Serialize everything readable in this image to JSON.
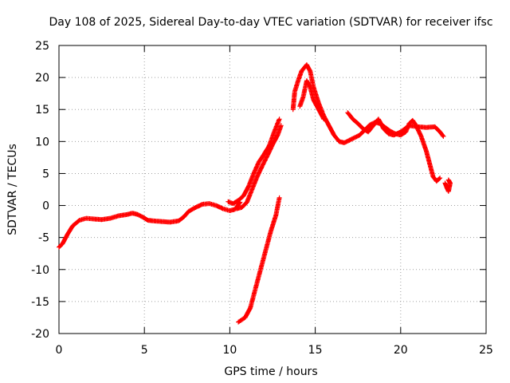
{
  "chart_data": {
    "type": "scatter",
    "title": "Day 108 of 2025, Sidereal Day-to-day VTEC variation (SDTVAR) for receiver ifsc",
    "xlabel": "GPS time / hours",
    "ylabel": "SDTVAR / TECUs",
    "xlim": [
      0,
      25
    ],
    "ylim": [
      -20,
      25
    ],
    "grid": true,
    "xticks": [
      0,
      5,
      10,
      15,
      20,
      25
    ],
    "yticks": [
      -20,
      -15,
      -10,
      -5,
      0,
      5,
      10,
      15,
      20,
      25
    ],
    "series": [
      {
        "name": "SDTVAR",
        "color": "#ff0000",
        "marker": "plus",
        "segments": [
          [
            [
              0.0,
              -6.5
            ],
            [
              0.2,
              -6.0
            ],
            [
              0.5,
              -4.5
            ],
            [
              0.8,
              -3.2
            ],
            [
              1.2,
              -2.3
            ],
            [
              1.6,
              -2.0
            ],
            [
              2.0,
              -2.1
            ],
            [
              2.5,
              -2.2
            ],
            [
              3.0,
              -2.0
            ],
            [
              3.5,
              -1.6
            ],
            [
              4.0,
              -1.4
            ],
            [
              4.3,
              -1.2
            ],
            [
              4.6,
              -1.4
            ],
            [
              4.9,
              -1.8
            ],
            [
              5.2,
              -2.3
            ],
            [
              5.5,
              -2.4
            ],
            [
              6.0,
              -2.5
            ],
            [
              6.5,
              -2.6
            ],
            [
              7.0,
              -2.4
            ],
            [
              7.3,
              -1.8
            ],
            [
              7.6,
              -0.9
            ],
            [
              8.0,
              -0.3
            ],
            [
              8.4,
              0.2
            ],
            [
              8.8,
              0.3
            ],
            [
              9.2,
              0.0
            ],
            [
              9.6,
              -0.5
            ],
            [
              10.0,
              -0.8
            ],
            [
              10.3,
              -0.6
            ],
            [
              10.6,
              0.5
            ]
          ],
          [
            [
              9.9,
              0.6
            ],
            [
              10.2,
              0.3
            ],
            [
              10.5,
              0.8
            ],
            [
              10.8,
              1.5
            ],
            [
              11.1,
              3.0
            ],
            [
              11.4,
              5.0
            ],
            [
              11.7,
              6.8
            ],
            [
              12.0,
              8.0
            ],
            [
              12.3,
              9.3
            ],
            [
              12.6,
              11.5
            ],
            [
              12.9,
              13.5
            ]
          ],
          [
            [
              10.4,
              -0.5
            ],
            [
              10.7,
              -0.3
            ],
            [
              11.0,
              0.5
            ],
            [
              11.3,
              2.5
            ],
            [
              11.6,
              4.5
            ],
            [
              11.9,
              6.2
            ],
            [
              12.2,
              7.8
            ],
            [
              12.5,
              9.5
            ],
            [
              12.8,
              11.0
            ],
            [
              13.0,
              12.5
            ]
          ],
          [
            [
              10.5,
              -18.2
            ],
            [
              10.9,
              -17.5
            ],
            [
              11.2,
              -16.0
            ],
            [
              11.5,
              -13.0
            ],
            [
              11.8,
              -10.0
            ],
            [
              12.1,
              -7.0
            ],
            [
              12.4,
              -4.0
            ],
            [
              12.7,
              -1.5
            ],
            [
              12.9,
              1.2
            ]
          ],
          [
            [
              13.7,
              15.0
            ],
            [
              13.8,
              17.8
            ],
            [
              14.0,
              19.5
            ],
            [
              14.2,
              21.0
            ],
            [
              14.5,
              22.0
            ],
            [
              14.7,
              21.0
            ],
            [
              14.9,
              18.5
            ],
            [
              15.2,
              16.0
            ],
            [
              15.5,
              14.0
            ],
            [
              15.8,
              12.5
            ],
            [
              16.1,
              11.0
            ],
            [
              16.4,
              10.0
            ],
            [
              16.7,
              9.8
            ],
            [
              17.0,
              10.2
            ]
          ],
          [
            [
              14.1,
              15.5
            ],
            [
              14.3,
              17.0
            ],
            [
              14.5,
              19.5
            ],
            [
              14.7,
              18.5
            ],
            [
              14.9,
              16.5
            ],
            [
              15.2,
              15.0
            ],
            [
              15.5,
              13.5
            ]
          ],
          [
            [
              17.0,
              10.2
            ],
            [
              17.3,
              10.6
            ],
            [
              17.6,
              11.0
            ],
            [
              17.9,
              11.8
            ],
            [
              18.2,
              12.6
            ],
            [
              18.5,
              13.0
            ],
            [
              18.8,
              12.8
            ],
            [
              19.1,
              12.2
            ],
            [
              19.4,
              11.6
            ],
            [
              19.7,
              11.2
            ],
            [
              20.0,
              11.0
            ],
            [
              20.3,
              11.5
            ],
            [
              20.5,
              12.8
            ],
            [
              20.7,
              13.3
            ],
            [
              20.9,
              12.5
            ],
            [
              21.2,
              10.8
            ],
            [
              21.5,
              8.5
            ],
            [
              21.7,
              6.5
            ],
            [
              21.9,
              4.5
            ],
            [
              22.1,
              3.8
            ],
            [
              22.3,
              4.3
            ]
          ],
          [
            [
              16.9,
              14.5
            ],
            [
              17.2,
              13.5
            ],
            [
              17.5,
              12.8
            ],
            [
              17.8,
              12.0
            ],
            [
              18.1,
              11.5
            ],
            [
              18.4,
              12.5
            ],
            [
              18.7,
              13.5
            ],
            [
              19.0,
              12.0
            ],
            [
              19.3,
              11.2
            ],
            [
              19.6,
              11.0
            ],
            [
              20.0,
              11.5
            ],
            [
              20.5,
              12.5
            ],
            [
              21.0,
              12.3
            ],
            [
              21.5,
              12.2
            ],
            [
              22.0,
              12.3
            ],
            [
              22.3,
              11.5
            ],
            [
              22.5,
              10.8
            ]
          ],
          [
            [
              22.6,
              3.5
            ],
            [
              22.7,
              2.8
            ],
            [
              22.8,
              2.2
            ],
            [
              22.9,
              3.5
            ],
            [
              22.8,
              4.0
            ]
          ]
        ]
      }
    ]
  }
}
